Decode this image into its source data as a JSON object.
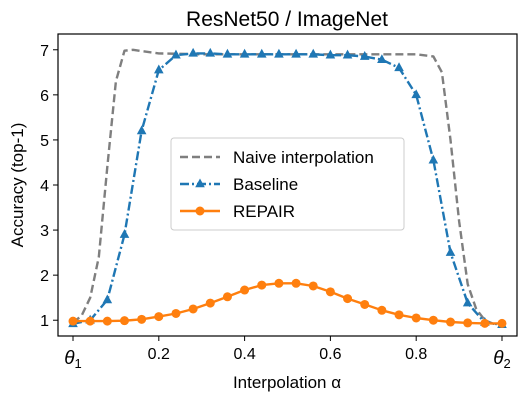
{
  "chart_data": {
    "type": "line",
    "title": "ResNet50 / ImageNet",
    "xlabel": "Interpolation α",
    "ylabel": "Accuracy (top-1)",
    "xlim": [
      -0.035,
      1.035
    ],
    "ylim": [
      0.65,
      7.35
    ],
    "xticks": [
      {
        "value": 0.0,
        "label": "θ",
        "sub": "1"
      },
      {
        "value": 0.2,
        "label": "0.2"
      },
      {
        "value": 0.4,
        "label": "0.4"
      },
      {
        "value": 0.6,
        "label": "0.6"
      },
      {
        "value": 0.8,
        "label": "0.8"
      },
      {
        "value": 1.0,
        "label": "θ",
        "sub": "2"
      }
    ],
    "yticks": [
      1,
      2,
      3,
      4,
      5,
      6,
      7
    ],
    "grid": false,
    "legend_position": "center",
    "colors": {
      "naive": "#7f7f7f",
      "baseline": "#1f77b4",
      "repair": "#ff7f0e"
    },
    "series": [
      {
        "name": "Naive interpolation",
        "style": "dashed",
        "marker": "none",
        "x": [
          0.0,
          0.02,
          0.04,
          0.06,
          0.08,
          0.1,
          0.12,
          0.14,
          0.16,
          0.2,
          0.3,
          0.4,
          0.5,
          0.6,
          0.7,
          0.8,
          0.84,
          0.86,
          0.88,
          0.9,
          0.92,
          0.94,
          0.96,
          0.98,
          1.0
        ],
        "y": [
          0.95,
          1.1,
          1.5,
          2.4,
          4.4,
          6.3,
          6.98,
          7.0,
          6.97,
          6.92,
          6.9,
          6.9,
          6.9,
          6.9,
          6.9,
          6.9,
          6.85,
          6.5,
          5.0,
          3.2,
          1.8,
          1.25,
          1.0,
          0.92,
          0.92
        ]
      },
      {
        "name": "Baseline",
        "style": "dashdot",
        "marker": "triangle",
        "x": [
          0.0,
          0.04,
          0.08,
          0.12,
          0.16,
          0.2,
          0.24,
          0.28,
          0.32,
          0.36,
          0.4,
          0.44,
          0.48,
          0.52,
          0.56,
          0.6,
          0.64,
          0.68,
          0.72,
          0.76,
          0.8,
          0.84,
          0.88,
          0.92,
          0.96,
          1.0
        ],
        "y": [
          0.92,
          1.0,
          1.45,
          2.9,
          5.2,
          6.55,
          6.88,
          6.92,
          6.92,
          6.9,
          6.9,
          6.9,
          6.9,
          6.9,
          6.9,
          6.88,
          6.88,
          6.85,
          6.78,
          6.6,
          6.0,
          4.55,
          2.5,
          1.38,
          0.95,
          0.9
        ]
      },
      {
        "name": "REPAIR",
        "style": "solid",
        "marker": "circle",
        "x": [
          0.0,
          0.04,
          0.08,
          0.12,
          0.16,
          0.2,
          0.24,
          0.28,
          0.32,
          0.36,
          0.4,
          0.44,
          0.48,
          0.52,
          0.56,
          0.6,
          0.64,
          0.68,
          0.72,
          0.76,
          0.8,
          0.84,
          0.88,
          0.92,
          0.96,
          1.0
        ],
        "y": [
          0.98,
          0.98,
          0.98,
          0.99,
          1.02,
          1.08,
          1.15,
          1.25,
          1.38,
          1.52,
          1.67,
          1.78,
          1.82,
          1.82,
          1.76,
          1.63,
          1.48,
          1.35,
          1.22,
          1.12,
          1.05,
          1.0,
          0.96,
          0.94,
          0.93,
          0.93
        ]
      }
    ]
  }
}
